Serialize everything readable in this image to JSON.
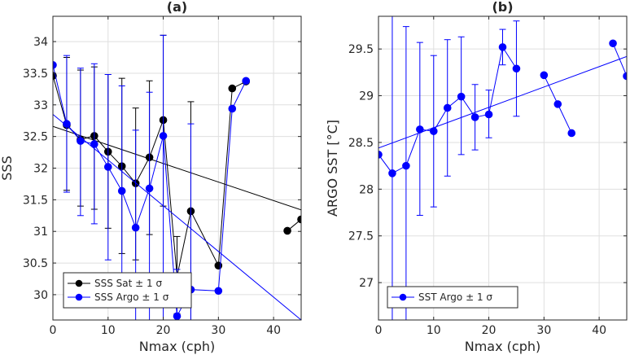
{
  "chart_data": [
    {
      "type": "line",
      "title": "(a)",
      "xlabel": "Nmax (cph)",
      "ylabel": "SSS",
      "xlim": [
        0,
        45
      ],
      "ylim": [
        29.6,
        34.4
      ],
      "xticks": [
        0,
        10,
        20,
        30,
        40
      ],
      "yticks": [
        30,
        30.5,
        31,
        31.5,
        32,
        32.5,
        33,
        33.5,
        34
      ],
      "ytick_labels": [
        "30",
        "30.5",
        "31",
        "31.5",
        "32",
        "32.5",
        "33",
        "33.5",
        "34"
      ],
      "grid": true,
      "legend_position": "bottom-left",
      "series": [
        {
          "name": "SSS Sat ± 1 σ",
          "color": "#000000",
          "points": [
            {
              "x": 0,
              "y": 33.46
            },
            {
              "x": 2.5,
              "y": 32.68
            },
            {
              "x": 5,
              "y": 32.45
            },
            {
              "x": 7.5,
              "y": 32.51
            },
            {
              "x": 10,
              "y": 32.26
            },
            {
              "x": 12.5,
              "y": 32.03
            },
            {
              "x": 15,
              "y": 31.76
            },
            {
              "x": 17.5,
              "y": 32.17
            },
            {
              "x": 20,
              "y": 32.76
            },
            {
              "x": 22.5,
              "y": 30.29
            },
            {
              "x": 25,
              "y": 31.32
            },
            {
              "x": 30,
              "y": 30.46
            },
            {
              "x": 32.5,
              "y": 33.26
            },
            {
              "x": 35,
              "y": 33.37
            },
            {
              "x": 42.5,
              "y": 31.01
            },
            {
              "x": 45,
              "y": 31.19
            }
          ],
          "breaks_after_index": [
            13
          ],
          "error_bars": [
            {
              "x": 2.5,
              "low": 31.65,
              "high": 33.75
            },
            {
              "x": 5,
              "low": 31.4,
              "high": 33.55
            },
            {
              "x": 7.5,
              "low": 31.35,
              "high": 33.6
            },
            {
              "x": 10,
              "low": 31.05,
              "high": 33.48
            },
            {
              "x": 12.5,
              "low": 30.65,
              "high": 33.42
            },
            {
              "x": 15,
              "low": 30.55,
              "high": 32.95
            },
            {
              "x": 17.5,
              "low": 30.95,
              "high": 33.38
            },
            {
              "x": 20,
              "low": 31.4,
              "high": 34.1
            },
            {
              "x": 22.5,
              "low": 29.7,
              "high": 30.92
            },
            {
              "x": 25,
              "low": 29.6,
              "high": 33.05
            }
          ],
          "fit_line": {
            "x": [
              0,
              45
            ],
            "y": [
              32.66,
              31.34
            ]
          }
        },
        {
          "name": "SSS Argo ± 1 σ",
          "color": "#0000ff",
          "points": [
            {
              "x": 0,
              "y": 33.63
            },
            {
              "x": 2.5,
              "y": 32.7
            },
            {
              "x": 5,
              "y": 32.43
            },
            {
              "x": 7.5,
              "y": 32.38
            },
            {
              "x": 10,
              "y": 32.02
            },
            {
              "x": 12.5,
              "y": 31.64
            },
            {
              "x": 15,
              "y": 31.06
            },
            {
              "x": 17.5,
              "y": 31.68
            },
            {
              "x": 20,
              "y": 32.51
            },
            {
              "x": 22.5,
              "y": 29.66
            },
            {
              "x": 25,
              "y": 30.08
            },
            {
              "x": 30,
              "y": 30.06
            },
            {
              "x": 32.5,
              "y": 32.94
            },
            {
              "x": 35,
              "y": 33.38
            }
          ],
          "breaks_after_index": [],
          "error_bars": [
            {
              "x": 2.5,
              "low": 31.62,
              "high": 33.78
            },
            {
              "x": 5,
              "low": 31.25,
              "high": 33.58
            },
            {
              "x": 7.5,
              "low": 31.12,
              "high": 33.65
            },
            {
              "x": 10,
              "low": 30.55,
              "high": 33.48
            },
            {
              "x": 12.5,
              "low": 29.9,
              "high": 33.3
            },
            {
              "x": 15,
              "low": 29.6,
              "high": 32.6
            },
            {
              "x": 17.5,
              "low": 29.6,
              "high": 33.2
            },
            {
              "x": 20,
              "low": 29.6,
              "high": 34.1
            },
            {
              "x": 22.5,
              "low": 29.6,
              "high": 30.4
            },
            {
              "x": 25,
              "low": 29.6,
              "high": 32.7
            }
          ],
          "fit_line": {
            "x": [
              0,
              45
            ],
            "y": [
              32.85,
              29.6
            ]
          }
        }
      ]
    },
    {
      "type": "line",
      "title": "(b)",
      "xlabel": "Nmax (cph)",
      "ylabel": "ARGO SST [°C]",
      "xlim": [
        0,
        45
      ],
      "ylim": [
        26.6,
        29.85
      ],
      "xticks": [
        0,
        10,
        20,
        30,
        40
      ],
      "yticks": [
        27,
        27.5,
        28,
        28.5,
        29,
        29.5
      ],
      "ytick_labels": [
        "27",
        "27.5",
        "28",
        "28.5",
        "29",
        "29.5"
      ],
      "grid": true,
      "legend_position": "bottom-left",
      "series": [
        {
          "name": "SST Argo ± 1 σ",
          "color": "#0000ff",
          "points": [
            {
              "x": 0,
              "y": 28.37
            },
            {
              "x": 2.5,
              "y": 28.17
            },
            {
              "x": 5,
              "y": 28.25
            },
            {
              "x": 7.5,
              "y": 28.64
            },
            {
              "x": 10,
              "y": 28.62
            },
            {
              "x": 12.5,
              "y": 28.87
            },
            {
              "x": 15,
              "y": 28.99
            },
            {
              "x": 17.5,
              "y": 28.77
            },
            {
              "x": 20,
              "y": 28.8
            },
            {
              "x": 22.5,
              "y": 29.52
            },
            {
              "x": 25,
              "y": 29.29
            },
            {
              "x": 30,
              "y": 29.22
            },
            {
              "x": 32.5,
              "y": 28.91
            },
            {
              "x": 35,
              "y": 28.6
            },
            {
              "x": 42.5,
              "y": 29.56
            },
            {
              "x": 45,
              "y": 29.21
            }
          ],
          "breaks_after_index": [
            10,
            13
          ],
          "error_bars": [
            {
              "x": 2.5,
              "low": 26.6,
              "high": 29.85
            },
            {
              "x": 5,
              "low": 26.6,
              "high": 29.74
            },
            {
              "x": 7.5,
              "low": 27.72,
              "high": 29.57
            },
            {
              "x": 10,
              "low": 27.81,
              "high": 29.43
            },
            {
              "x": 12.5,
              "low": 28.14,
              "high": 29.6
            },
            {
              "x": 15,
              "low": 28.37,
              "high": 29.63
            },
            {
              "x": 17.5,
              "low": 28.42,
              "high": 29.12
            },
            {
              "x": 20,
              "low": 28.55,
              "high": 29.06
            },
            {
              "x": 22.5,
              "low": 29.33,
              "high": 29.71
            },
            {
              "x": 25,
              "low": 28.78,
              "high": 29.8
            }
          ],
          "fit_line": {
            "x": [
              0,
              45
            ],
            "y": [
              28.44,
              29.42
            ]
          }
        }
      ]
    }
  ]
}
